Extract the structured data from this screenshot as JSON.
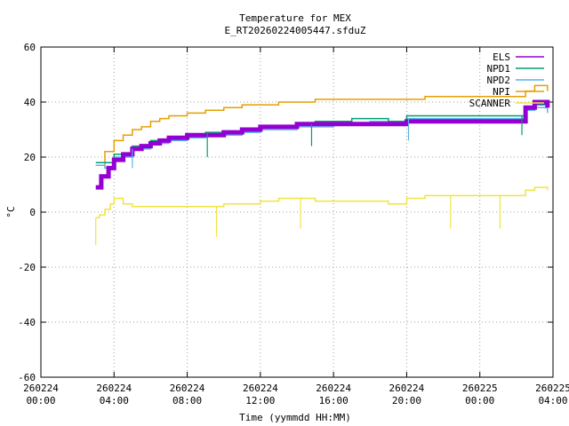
{
  "chart_data": {
    "type": "line",
    "title": "Temperature for MEX",
    "subtitle": "E_RT20260224005447.sfduZ",
    "xlabel": "Time (yymmdd HH:MM)",
    "ylabel": "°C",
    "xlim": [
      "2026-02-24 00:00",
      "2026-02-25 04:00"
    ],
    "ylim": [
      -60,
      60
    ],
    "grid": true,
    "legend_position": "top-right",
    "y_ticks": [
      "-60",
      "-40",
      "-20",
      "0",
      "20",
      "40",
      "60"
    ],
    "x_ticks": [
      {
        "date": "260224",
        "time": "00:00"
      },
      {
        "date": "260224",
        "time": "04:00"
      },
      {
        "date": "260224",
        "time": "08:00"
      },
      {
        "date": "260224",
        "time": "12:00"
      },
      {
        "date": "260224",
        "time": "16:00"
      },
      {
        "date": "260224",
        "time": "20:00"
      },
      {
        "date": "260225",
        "time": "00:00"
      },
      {
        "date": "260225",
        "time": "04:00"
      }
    ],
    "series": [
      {
        "name": "ELS",
        "color": "#9400d3",
        "x": [
          3.0,
          3.3,
          3.7,
          4.0,
          4.5,
          5.0,
          5.5,
          6.0,
          6.5,
          7.0,
          8.0,
          9.0,
          10.0,
          11.0,
          12.0,
          13.0,
          14.0,
          15.0,
          16.0,
          17.0,
          18.0,
          19.0,
          20.0,
          21.0,
          22.0,
          23.0,
          24.0,
          25.0,
          26.0,
          26.5,
          27.0,
          27.7
        ],
        "y": [
          9,
          13,
          16,
          19,
          21,
          23,
          24,
          25,
          26,
          27,
          28,
          28,
          29,
          30,
          31,
          31,
          32,
          32,
          32,
          32,
          32,
          32,
          33,
          33,
          33,
          33,
          33,
          33,
          33,
          38,
          40,
          38
        ]
      },
      {
        "name": "NPD1",
        "color": "#009e73",
        "x": [
          3.0,
          3.5,
          4.0,
          5.0,
          6.0,
          7.0,
          8.0,
          9.0,
          10.0,
          11.0,
          12.0,
          13.0,
          14.0,
          15.0,
          16.0,
          17.0,
          18.0,
          19.0,
          20.0,
          21.0,
          22.0,
          23.0,
          24.0,
          25.0,
          26.0,
          26.5,
          27.0,
          27.7
        ],
        "y": [
          18,
          18,
          21,
          24,
          26,
          27,
          28,
          29,
          29,
          30,
          31,
          31,
          32,
          33,
          33,
          34,
          34,
          33,
          35,
          35,
          35,
          35,
          35,
          35,
          35,
          38,
          39,
          38
        ]
      },
      {
        "name": "NPD2",
        "color": "#56b4e9",
        "x": [
          3.0,
          3.5,
          4.0,
          5.0,
          6.0,
          7.0,
          8.0,
          9.0,
          10.0,
          11.0,
          12.0,
          13.0,
          14.0,
          15.0,
          16.0,
          17.0,
          18.0,
          19.0,
          20.0,
          21.0,
          22.0,
          23.0,
          24.0,
          25.0,
          26.0,
          26.5,
          27.0,
          27.7
        ],
        "y": [
          17,
          16,
          20,
          23,
          25,
          26,
          27,
          28,
          28,
          29,
          30,
          30,
          31,
          31,
          32,
          32,
          33,
          33,
          34,
          34,
          34,
          34,
          34,
          34,
          34,
          37,
          38,
          36
        ]
      },
      {
        "name": "NPI",
        "color": "#e69f00",
        "x": [
          3.0,
          3.5,
          4.0,
          4.5,
          5.0,
          5.5,
          6.0,
          6.5,
          7.0,
          8.0,
          9.0,
          10.0,
          11.0,
          12.0,
          13.0,
          14.0,
          15.0,
          16.0,
          17.0,
          18.0,
          19.0,
          20.0,
          21.0,
          22.0,
          23.0,
          24.0,
          25.0,
          26.0,
          26.5,
          27.0,
          27.7
        ],
        "y": [
          17,
          22,
          26,
          28,
          30,
          31,
          33,
          34,
          35,
          36,
          37,
          38,
          39,
          39,
          40,
          40,
          41,
          41,
          41,
          41,
          41,
          41,
          42,
          42,
          42,
          42,
          42,
          42,
          44,
          46,
          44
        ]
      },
      {
        "name": "SCANNER",
        "color": "#f0e442",
        "x": [
          3.0,
          3.2,
          3.5,
          3.8,
          4.0,
          4.5,
          5.0,
          6.0,
          7.0,
          8.0,
          9.0,
          10.0,
          11.0,
          12.0,
          13.0,
          14.0,
          15.0,
          16.0,
          17.0,
          18.0,
          19.0,
          20.0,
          21.0,
          22.0,
          23.0,
          24.0,
          25.0,
          26.0,
          26.5,
          27.0,
          27.7
        ],
        "y": [
          -2,
          -1,
          1,
          3,
          5,
          3,
          2,
          2,
          2,
          2,
          2,
          3,
          3,
          4,
          5,
          5,
          4,
          4,
          4,
          4,
          3,
          5,
          6,
          6,
          6,
          6,
          6,
          6,
          8,
          9,
          8
        ]
      }
    ],
    "spikes": [
      {
        "series": "SCANNER",
        "x": 3.0,
        "y": -12
      },
      {
        "series": "SCANNER",
        "x": 9.6,
        "y": -9
      },
      {
        "series": "SCANNER",
        "x": 14.2,
        "y": -6
      },
      {
        "series": "SCANNER",
        "x": 22.4,
        "y": -6
      },
      {
        "series": "SCANNER",
        "x": 25.1,
        "y": -6
      },
      {
        "series": "NPD2",
        "x": 5.0,
        "y": 16
      },
      {
        "series": "NPD1",
        "x": 9.1,
        "y": 20
      },
      {
        "series": "NPD1",
        "x": 14.8,
        "y": 24
      },
      {
        "series": "NPD2",
        "x": 20.1,
        "y": 26
      },
      {
        "series": "NPD1",
        "x": 26.3,
        "y": 28
      }
    ]
  }
}
